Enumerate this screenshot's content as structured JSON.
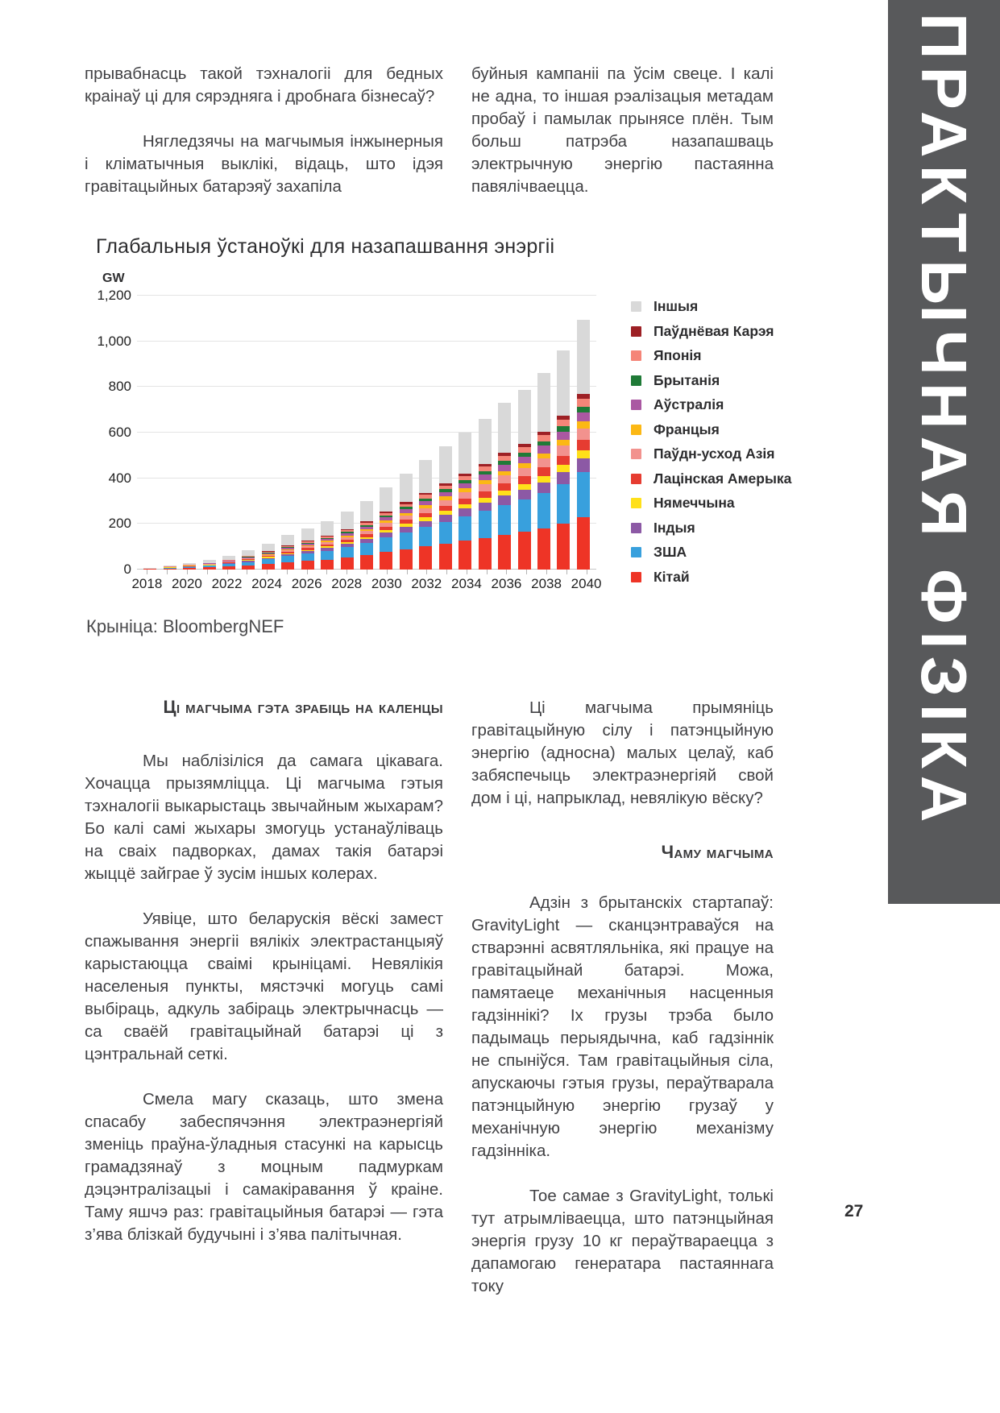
{
  "page": {
    "number": "27",
    "sidebar_title": "ПРАКТЫЧНАЯ ФІЗІКА"
  },
  "intro": {
    "left": {
      "p1": "прывабнасць такой тэхналогіі для бедных краінаў ці для сярэдняга і дробнага бізнесаў?",
      "p2": "Нягледзячы на магчымыя інжынерныя і кліматычныя выклікі, відаць, што ідэя гравітацыйных батарэяў захапіла"
    },
    "right": {
      "p1": "буйныя кампаніі па ўсім свеце. І калі не адна, то іншая рэалізацыя метадам пробаў і памылак прынясе плён. Тым больш патрэба назапашваць электрычную энергію пастаянна павялічваецца."
    }
  },
  "chart_data": {
    "type": "bar",
    "stacked": true,
    "title": "Глабальныя ўстаноўкі для назапашвання энэргіі",
    "unit_label": "GW",
    "source": "Крыніца: BloombergNEF",
    "ylim": [
      0,
      1200
    ],
    "yticks": [
      {
        "value": 0,
        "label": "0"
      },
      {
        "value": 200,
        "label": "200"
      },
      {
        "value": 400,
        "label": "400"
      },
      {
        "value": 600,
        "label": "600"
      },
      {
        "value": 800,
        "label": "800"
      },
      {
        "value": 1000,
        "label": "1,000"
      },
      {
        "value": 1200,
        "label": "1,200"
      }
    ],
    "years": [
      2018,
      2019,
      2020,
      2021,
      2022,
      2023,
      2024,
      2025,
      2026,
      2027,
      2028,
      2029,
      2030,
      2031,
      2032,
      2033,
      2034,
      2035,
      2036,
      2037,
      2038,
      2039,
      2040
    ],
    "xtick_labels": [
      "2018",
      "2020",
      "2022",
      "2024",
      "2026",
      "2028",
      "2030",
      "2032",
      "2034",
      "2036",
      "2038",
      "2040"
    ],
    "legend_position": "right",
    "series": [
      {
        "name": "Кітай",
        "color": "#ee3426",
        "values": [
          2,
          4,
          6,
          9,
          13,
          18,
          24,
          32,
          38,
          44,
          53,
          63,
          76,
          88,
          101,
          113,
          126,
          139,
          153,
          166,
          181,
          202,
          230
        ]
      },
      {
        "name": "ЗША",
        "color": "#38a0dd",
        "values": [
          2,
          3,
          5,
          8,
          11,
          15,
          21,
          27,
          32,
          38,
          45,
          54,
          65,
          76,
          86,
          97,
          108,
          119,
          131,
          142,
          155,
          173,
          197
        ]
      },
      {
        "name": "Індыя",
        "color": "#8c59a5",
        "values": [
          0,
          1,
          2,
          2,
          3,
          5,
          6,
          8,
          10,
          12,
          14,
          16,
          20,
          23,
          26,
          30,
          33,
          36,
          40,
          43,
          47,
          53,
          60
        ]
      },
      {
        "name": "Нямеччына",
        "color": "#ffe01a",
        "values": [
          0,
          1,
          1,
          1,
          2,
          3,
          4,
          5,
          6,
          7,
          8,
          10,
          12,
          13,
          15,
          17,
          19,
          21,
          23,
          25,
          28,
          31,
          35
        ]
      },
      {
        "name": "Лацінская Амерыка",
        "color": "#e63c31",
        "values": [
          0,
          1,
          1,
          2,
          3,
          4,
          5,
          6,
          8,
          9,
          11,
          13,
          15,
          18,
          20,
          23,
          25,
          28,
          31,
          33,
          36,
          40,
          46
        ]
      },
      {
        "name": "Паўдн-усход Азія",
        "color": "#f2928e",
        "values": [
          0,
          1,
          1,
          2,
          3,
          4,
          5,
          7,
          8,
          10,
          12,
          14,
          17,
          19,
          22,
          25,
          28,
          30,
          34,
          36,
          40,
          44,
          50
        ]
      },
      {
        "name": "Францыя",
        "color": "#fcb814",
        "values": [
          0,
          0,
          1,
          1,
          2,
          2,
          3,
          4,
          5,
          6,
          7,
          8,
          10,
          11,
          13,
          15,
          16,
          18,
          20,
          21,
          23,
          26,
          30
        ]
      },
      {
        "name": "Аўстралія",
        "color": "#aa58a2",
        "values": [
          0,
          1,
          1,
          2,
          2,
          3,
          4,
          6,
          7,
          8,
          9,
          11,
          13,
          16,
          18,
          20,
          22,
          24,
          27,
          29,
          32,
          36,
          41
        ]
      },
      {
        "name": "Брытанія",
        "color": "#1f7a37",
        "values": [
          0,
          0,
          1,
          1,
          1,
          2,
          3,
          3,
          4,
          5,
          6,
          7,
          8,
          10,
          11,
          12,
          14,
          15,
          17,
          18,
          20,
          22,
          25
        ]
      },
      {
        "name": "Японія",
        "color": "#f58578",
        "values": [
          0,
          1,
          1,
          1,
          2,
          3,
          4,
          5,
          6,
          7,
          8,
          10,
          12,
          13,
          15,
          17,
          19,
          21,
          23,
          25,
          28,
          31,
          35
        ]
      },
      {
        "name": "Паўднёвая Карэя",
        "color": "#9d2025",
        "values": [
          0,
          0,
          1,
          1,
          1,
          2,
          2,
          3,
          3,
          4,
          5,
          5,
          6,
          8,
          9,
          10,
          11,
          12,
          13,
          14,
          15,
          17,
          20
        ]
      },
      {
        "name": "Іншыя",
        "color": "#d9d9d9",
        "values": [
          3,
          5,
          8,
          13,
          18,
          25,
          34,
          45,
          54,
          63,
          75,
          89,
          107,
          125,
          143,
          161,
          179,
          197,
          218,
          235,
          256,
          286,
          326
        ]
      }
    ]
  },
  "sections": {
    "left": {
      "heading": "Ці магчыма гэта зрабіць на каленцы",
      "paragraphs": [
        "Мы наблізіліся да самага цікавага. Хочацца прызямліцца. Ці магчыма гэтыя тэхналогіі выкарыстаць звычайным жыхарам? Бо калі самі жыхары змогуць устанаўліваць на сваіх падворках, дамах такія батарэі жыццё зайграе ў зусім іншых колерах.",
        "Уявіце, што беларускія вёскі замест спажывання энергіі вялікіх электрастанцыяў карыстаюцца сваімі крыніцамі. Невялікія населеныя пункты, мястэчкі могуць самі выбіраць, адкуль забіраць электрычнасць — са сваёй гравітацыйнай батарэі ці з цэнтральнай сеткі.",
        "Смела магу сказаць, што змена спасабу забеспячэння электраэнергіяй зменіць праўна-ўладныя стасункі на карысць грамадзянаў з моцным падмуркам дэцэнтралізацыі і самакіравання ў краіне. Таму яшчэ раз: гравітацыйныя батарэі — гэта з’ява блізкай будучыні і з’ява палітычная."
      ]
    },
    "right": {
      "p_before": "Ці магчыма прымяніць гравітацыйную сілу і патэнцыйную энергію (адносна) малых целаў, каб забяспечыць электраэнергіяй свой дом і ці, напрыклад, невялікую вёску?",
      "heading": "Чаму магчыма",
      "paragraphs": [
        "Адзін з брытанскіх стартапаў: GravityLight — сканцэнтраваўся на стварэнні асвятляльніка, які працуе на гравітацыйнай батарэі. Можа, памятаеце механічныя насценныя гадзіннікі? Іх грузы трэба было падымаць перыядычна, каб гадзіннік не спыніўся. Там гравітацыйныя сіла, апускаючы гэтыя грузы, пераўтварала патэнцыйную энергію грузаў у механічную энергію механізму гадзінніка.",
        "Тое самае з GravityLight, толькі тут атрымліваецца, што патэнцыйная энергія грузу 10 кг пераўтвараецца з дапамогаю генератара пастаяннага току"
      ]
    }
  }
}
